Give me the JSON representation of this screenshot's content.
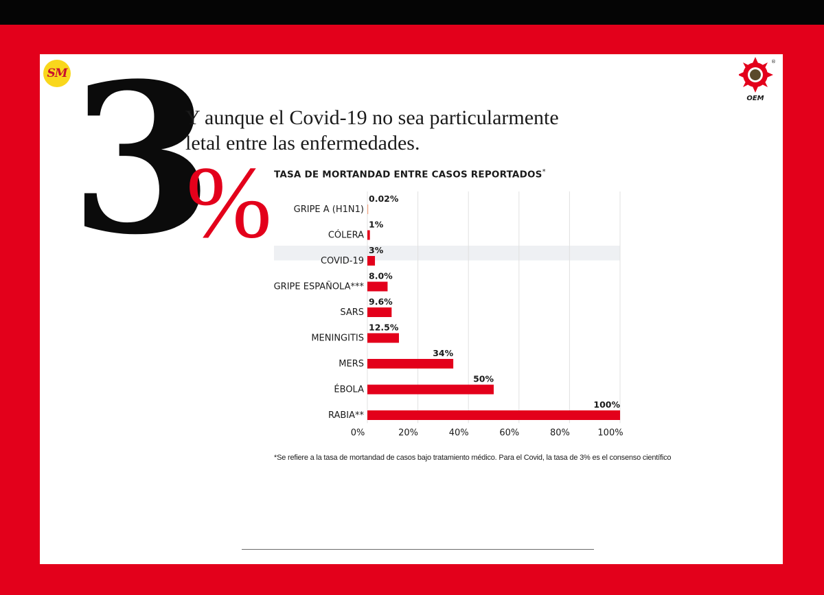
{
  "brand": {
    "left_logo_text": "SM",
    "right_logo_text": "OEM",
    "right_logo_mark": "®"
  },
  "hero": {
    "number": "3",
    "percent_sign": "%",
    "headline": "Y aunque el Covid-19 no sea particularmente letal entre las enfermedades."
  },
  "colors": {
    "background_red": "#e3001b",
    "bar": "#e3001b",
    "bar_tiny": "#f4a582",
    "highlight_row": "#eef0f3",
    "gridline": "#e0e0e0",
    "text": "#1a1a1a"
  },
  "chart_data": {
    "type": "bar",
    "orientation": "horizontal",
    "title": "TASA DE MORTANDAD ENTRE CASOS REPORTADOS",
    "title_mark": "*",
    "categories": [
      "GRIPE A (H1N1)",
      "CÓLERA",
      "COVID-19",
      "GRIPE ESPAÑOLA***",
      "SARS",
      "MENINGITIS",
      "MERS",
      "ÉBOLA",
      "RABIA**"
    ],
    "values": [
      0.02,
      1,
      3,
      8.0,
      9.6,
      12.5,
      34,
      50,
      100
    ],
    "data_labels": [
      "0.02%",
      "1%",
      "3%",
      "8.0%",
      "9.6%",
      "12.5%",
      "34%",
      "50%",
      "100%"
    ],
    "highlight_category": "COVID-19",
    "xlim": [
      0,
      100
    ],
    "x_ticks": [
      "0%",
      "20%",
      "40%",
      "60%",
      "80%",
      "100%"
    ],
    "grid": true,
    "legend": "none"
  },
  "footnote": "*Se refiere a la tasa de mortandad de casos bajo tratamiento médico. Para el Covid, la tasa de 3% es el consenso científico"
}
